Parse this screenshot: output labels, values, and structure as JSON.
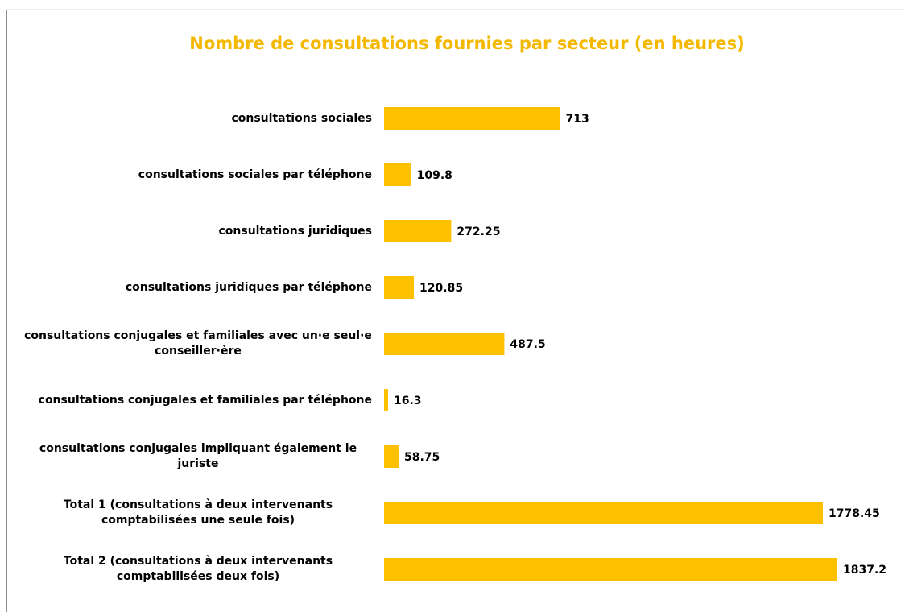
{
  "chart_data": {
    "type": "bar",
    "orientation": "horizontal",
    "title": "Nombre de consultations fournies par secteur (en heures)",
    "categories": [
      "consultations sociales",
      "consultations sociales par téléphone",
      "consultations juridiques",
      "consultations juridiques par téléphone",
      "consultations conjugales et familiales avec un·e seul·e conseiller·ère",
      "consultations conjugales et familiales par téléphone",
      "consultations conjugales impliquant également le juriste",
      "Total 1 (consultations à deux intervenants comptabilisées une seule fois)",
      "Total 2 (consultations à deux intervenants comptabilisées deux fois)"
    ],
    "values": [
      713,
      109.8,
      272.25,
      120.85,
      487.5,
      16.3,
      58.75,
      1778.45,
      1837.2
    ],
    "color": "#ffc000",
    "title_color": "#f5b800"
  }
}
